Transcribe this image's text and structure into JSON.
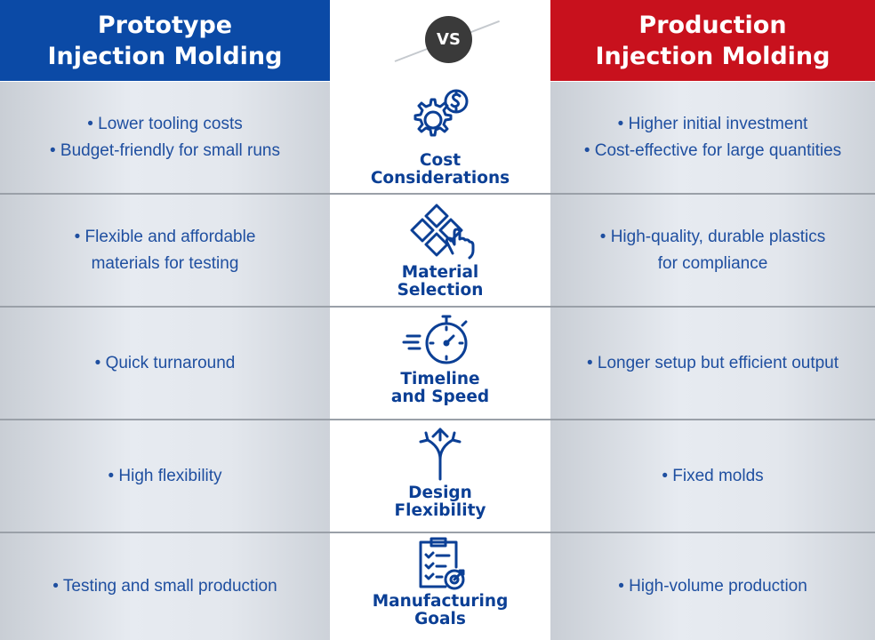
{
  "header": {
    "left": {
      "line1": "Prototype",
      "line2": "Injection Molding",
      "color": "#0b4aa6"
    },
    "right": {
      "line1": "Production",
      "line2": "Injection Molding",
      "color": "#c8111d"
    },
    "vs": "VS"
  },
  "rows": [
    {
      "icon": "gear-dollar-icon",
      "category": {
        "line1": "Cost",
        "line2": "Considerations"
      },
      "left": [
        "• Lower tooling costs",
        "• Budget-friendly for small runs"
      ],
      "right": [
        "• Higher initial investment",
        "• Cost-effective for large quantities"
      ]
    },
    {
      "icon": "material-tiles-hand-icon",
      "category": {
        "line1": "Material",
        "line2": "Selection"
      },
      "left": [
        "• Flexible and affordable",
        "materials for testing"
      ],
      "right": [
        "• High-quality, durable plastics",
        "for compliance"
      ]
    },
    {
      "icon": "stopwatch-icon",
      "category": {
        "line1": "Timeline",
        "line2": "and Speed"
      },
      "left": [
        "• Quick turnaround"
      ],
      "right": [
        "• Longer setup but efficient output"
      ]
    },
    {
      "icon": "split-arrows-icon",
      "category": {
        "line1": "Design",
        "line2": "Flexibility"
      },
      "left": [
        "• High flexibility"
      ],
      "right": [
        "• Fixed molds"
      ]
    },
    {
      "icon": "clipboard-target-icon",
      "category": {
        "line1": "Manufacturing",
        "line2": "Goals"
      },
      "left": [
        "• Testing and small production"
      ],
      "right": [
        "• High-volume production"
      ]
    }
  ]
}
